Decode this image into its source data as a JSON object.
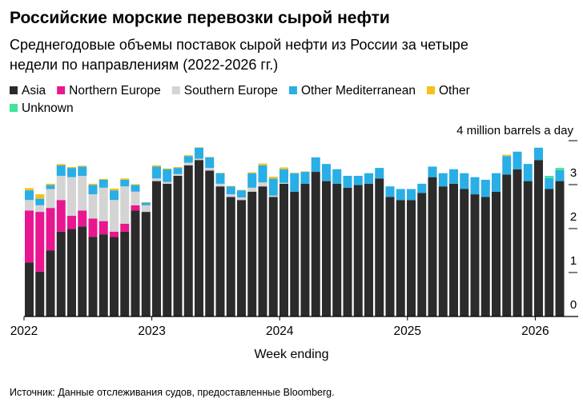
{
  "chart_data": {
    "type": "bar",
    "stacked": true,
    "title": "Российские морские перевозки сырой нефти",
    "subtitle": "Среднегодовые объемы поставок сырой нефти из России за четыре недели по направлениям (2022-2026 гг.)",
    "subtitle_lines": [
      "Среднегодовые объемы поставок сырой нефти из России за четыре",
      "недели по направлениям (2022-2026 гг.)"
    ],
    "xlabel": "Week ending",
    "ylabel": "4 million barrels a day",
    "ylim": [
      0,
      4
    ],
    "yticks": [
      "0",
      "1",
      "2",
      "3"
    ],
    "xticks": [
      "2022",
      "2023",
      "2024",
      "2025",
      "2026"
    ],
    "grid": false,
    "legend_position": "top-left",
    "source": "Источник: Данные отслеживания судов, предоставленные Bloomberg.",
    "categories": [
      "2022-01",
      "2022-02",
      "2022-03",
      "2022-04",
      "2022-05",
      "2022-06",
      "2022-07",
      "2022-08",
      "2022-09",
      "2022-10",
      "2022-11",
      "2022-12",
      "2023-01",
      "2023-02",
      "2023-03",
      "2023-04",
      "2023-05",
      "2023-06",
      "2023-07",
      "2023-08",
      "2023-09",
      "2023-10",
      "2023-11",
      "2023-12",
      "2024-01",
      "2024-02",
      "2024-03",
      "2024-04",
      "2024-05",
      "2024-06",
      "2024-07",
      "2024-08",
      "2024-09",
      "2024-10",
      "2024-11",
      "2024-12",
      "2025-01",
      "2025-02",
      "2025-03",
      "2025-04",
      "2025-05",
      "2025-06",
      "2025-07",
      "2025-08",
      "2025-09",
      "2025-10",
      "2025-11",
      "2025-12",
      "2026-01",
      "2026-02",
      "2026-03"
    ],
    "series": [
      {
        "name": "Asia",
        "color": "#2b2b2b",
        "values": [
          1.23,
          1.02,
          1.5,
          1.93,
          1.99,
          2.05,
          1.81,
          1.87,
          1.81,
          1.93,
          2.41,
          2.38,
          3.08,
          3.02,
          3.2,
          3.44,
          3.56,
          3.32,
          2.96,
          2.72,
          2.65,
          2.84,
          2.96,
          2.72,
          3.02,
          2.84,
          3.02,
          3.29,
          3.08,
          3.02,
          2.93,
          2.99,
          3.02,
          3.14,
          2.72,
          2.65,
          2.65,
          2.81,
          3.17,
          2.96,
          3.02,
          2.9,
          2.78,
          2.72,
          2.84,
          3.23,
          3.35,
          3.08,
          3.56,
          2.9,
          3.08
        ]
      },
      {
        "name": "Northern Europe",
        "color": "#e8178f",
        "values": [
          1.18,
          1.36,
          0.97,
          0.72,
          0.3,
          0.36,
          0.42,
          0.3,
          0.12,
          0.18,
          0.12,
          0,
          0,
          0,
          0,
          0,
          0,
          0,
          0,
          0,
          0,
          0,
          0,
          0,
          0,
          0,
          0,
          0,
          0,
          0,
          0,
          0,
          0,
          0,
          0,
          0,
          0,
          0,
          0,
          0,
          0,
          0,
          0,
          0,
          0,
          0,
          0,
          0,
          0,
          0,
          0
        ]
      },
      {
        "name": "Southern Europe",
        "color": "#d4d4d4",
        "values": [
          0.24,
          0.15,
          0.43,
          0.55,
          0.88,
          0.79,
          0.55,
          0.76,
          0.72,
          0.85,
          0.31,
          0.15,
          0.06,
          0.04,
          0.04,
          0.06,
          0.03,
          0.06,
          0.06,
          0.06,
          0.06,
          0.09,
          0.09,
          0.03,
          0.02,
          0,
          0,
          0,
          0,
          0,
          0,
          0,
          0,
          0,
          0,
          0,
          0,
          0,
          0,
          0,
          0,
          0,
          0,
          0,
          0,
          0,
          0,
          0,
          0,
          0,
          0
        ]
      },
      {
        "name": "Other Mediterranean",
        "color": "#2aaee6",
        "values": [
          0.22,
          0.15,
          0.09,
          0.24,
          0.21,
          0.21,
          0.21,
          0.18,
          0.22,
          0.15,
          0.15,
          0.06,
          0.27,
          0.29,
          0.14,
          0.15,
          0.25,
          0.24,
          0.24,
          0.18,
          0.16,
          0.33,
          0.39,
          0.39,
          0.31,
          0.42,
          0.27,
          0.33,
          0.39,
          0.33,
          0.27,
          0.21,
          0.24,
          0.24,
          0.24,
          0.25,
          0.25,
          0.21,
          0.24,
          0.3,
          0.33,
          0.36,
          0.39,
          0.39,
          0.42,
          0.42,
          0.4,
          0.39,
          0.28,
          0.25,
          0.25
        ]
      },
      {
        "name": "Other",
        "color": "#f5c116",
        "values": [
          0.05,
          0.1,
          0.03,
          0.03,
          0.02,
          0.02,
          0.03,
          0.02,
          0.04,
          0.03,
          0.02,
          0.01,
          0.03,
          0.02,
          0.02,
          0.02,
          0.01,
          0.01,
          0.01,
          0.01,
          0.01,
          0.02,
          0.04,
          0.04,
          0.04,
          0.01,
          0.01,
          0,
          0,
          0,
          0,
          0,
          0,
          0,
          0,
          0,
          0,
          0,
          0,
          0,
          0,
          0,
          0,
          0,
          0,
          0.03,
          0,
          0,
          0,
          0,
          0
        ]
      },
      {
        "name": "Unknown",
        "color": "#44e39a",
        "values": [
          0,
          0,
          0,
          0,
          0,
          0,
          0,
          0,
          0,
          0,
          0,
          0,
          0,
          0,
          0,
          0,
          0,
          0,
          0,
          0,
          0,
          0,
          0,
          0,
          0,
          0,
          0,
          0,
          0,
          0,
          0,
          0,
          0,
          0,
          0,
          0,
          0,
          0,
          0,
          0,
          0,
          0,
          0,
          0,
          0,
          0,
          0,
          0,
          0,
          0.05,
          0.05
        ]
      }
    ]
  }
}
